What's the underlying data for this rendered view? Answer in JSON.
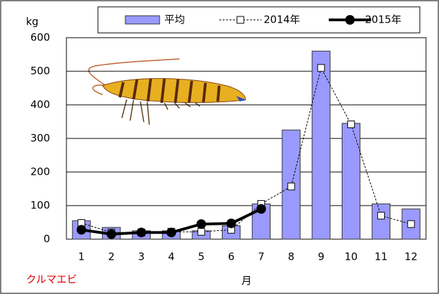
{
  "chart_data": {
    "type": "bar",
    "ylabel": "kg",
    "xlabel": "月",
    "annotation": "クルマエビ",
    "categories": [
      "1",
      "2",
      "3",
      "4",
      "5",
      "6",
      "7",
      "8",
      "9",
      "10",
      "11",
      "12"
    ],
    "series": [
      {
        "name": "平均",
        "type": "bar",
        "color": "#9999ff",
        "values": [
          55,
          35,
          25,
          25,
          25,
          40,
          105,
          325,
          560,
          345,
          105,
          90
        ]
      },
      {
        "name": "2014年",
        "type": "line",
        "color": "#000000",
        "dashed": true,
        "marker": "square",
        "values": [
          48,
          20,
          20,
          22,
          22,
          28,
          105,
          157,
          510,
          342,
          70,
          45
        ]
      },
      {
        "name": "2015年",
        "type": "line",
        "color": "#000000",
        "dashed": false,
        "marker": "circle",
        "values": [
          28,
          15,
          20,
          20,
          45,
          47,
          90,
          null,
          null,
          null,
          null,
          null
        ]
      }
    ],
    "ylim": [
      0,
      600
    ],
    "yticks": [
      0,
      100,
      200,
      300,
      400,
      500,
      600
    ],
    "grid": true
  }
}
